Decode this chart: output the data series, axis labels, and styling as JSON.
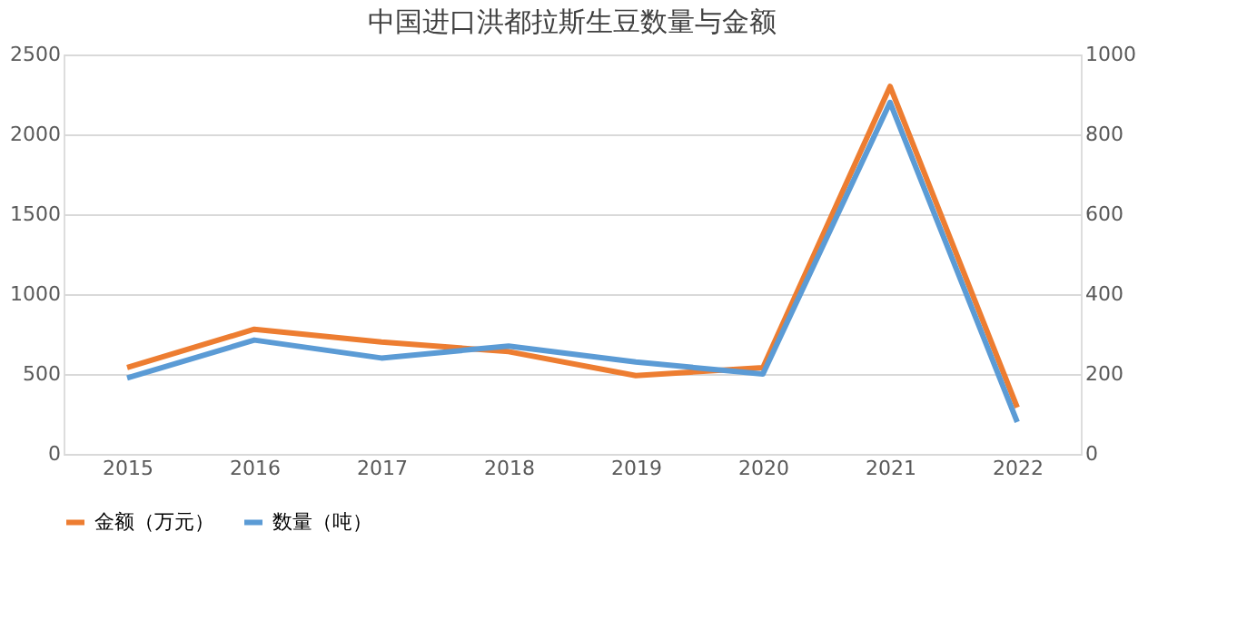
{
  "chart_data": {
    "type": "line",
    "title": "中国进口洪都拉斯生豆数量与金额",
    "categories": [
      "2015",
      "2016",
      "2017",
      "2018",
      "2019",
      "2020",
      "2021",
      "2022"
    ],
    "series": [
      {
        "name": "金额（万元）",
        "color": "#ed7d31",
        "values": [
          540,
          780,
          700,
          640,
          490,
          540,
          2300,
          290
        ]
      },
      {
        "name": "数量（吨）",
        "color": "#5b9bd5",
        "axis": "y2",
        "values": [
          190,
          285,
          240,
          270,
          230,
          200,
          880,
          80
        ]
      }
    ],
    "ylim": [
      0,
      2500
    ],
    "yticks": [
      0,
      500,
      1000,
      1500,
      2000,
      2500
    ],
    "y2lim": [
      0,
      1000
    ],
    "y2ticks": [
      0,
      200,
      400,
      600,
      800,
      1000
    ],
    "grid": "y",
    "legend": "bottom",
    "marker": "none",
    "line_style": "solid"
  }
}
